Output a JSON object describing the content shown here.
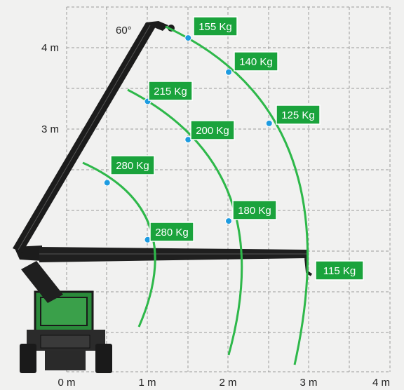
{
  "diagram": {
    "angle_label": "60°",
    "x_axis_labels": [
      "0 m",
      "1 m",
      "2 m",
      "3 m",
      "4 m"
    ],
    "y_axis_labels": [
      "3 m",
      "4 m"
    ],
    "load_points": [
      {
        "label": "155 Kg",
        "x": 1.5,
        "y": 4.12
      },
      {
        "label": "140 Kg",
        "x": 2.0,
        "y": 3.7
      },
      {
        "label": "125 Kg",
        "x": 2.5,
        "y": 3.07
      },
      {
        "label": "215 Kg",
        "x": 1.0,
        "y": 3.34
      },
      {
        "label": "200 Kg",
        "x": 1.5,
        "y": 2.87
      },
      {
        "label": "280 Kg",
        "x": 0.5,
        "y": 2.34
      },
      {
        "label": "180 Kg",
        "x": 2.0,
        "y": 1.87
      },
      {
        "label": "280 Kg",
        "x": 1.0,
        "y": 1.64
      },
      {
        "label": "115 Kg",
        "x": null,
        "y": null
      }
    ],
    "colors": {
      "curve": "#2eb84a",
      "label_bg": "#1aa33c",
      "point": "#1d9be0",
      "grid": "#9a9a9a",
      "machine_body": "#2a8a3a",
      "boom": "#1c1c1c"
    }
  }
}
